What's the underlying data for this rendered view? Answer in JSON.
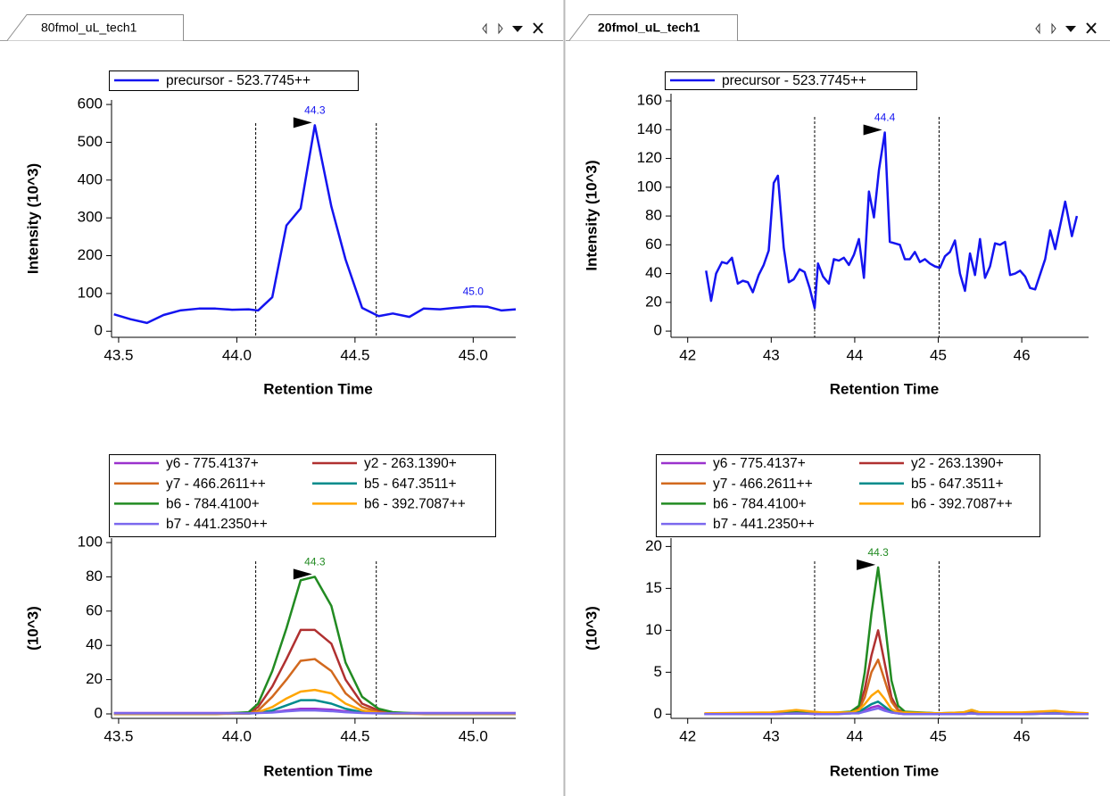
{
  "tabs": [
    "80fmol_uL_tech1",
    "20fmol_uL_tech1"
  ],
  "chart_data": [
    {
      "type": "line",
      "xlabel": "Retention Time",
      "ylabel": "Intensity (10^3)",
      "xlim": [
        43.47,
        45.18
      ],
      "ylim": [
        -16,
        612
      ],
      "xticks": [
        43.5,
        {
          "value": 44,
          "label": "44.0"
        },
        44.5,
        {
          "value": 45,
          "label": "45.0"
        }
      ],
      "yticks": [
        0,
        100,
        200,
        300,
        400,
        500,
        600
      ],
      "legend_columns": 1,
      "x": [
        43.48,
        43.55,
        43.62,
        43.69,
        43.76,
        43.84,
        43.91,
        43.98,
        44.05,
        44.09,
        44.15,
        44.21,
        44.27,
        44.33,
        44.4,
        44.46,
        44.53,
        44.6,
        44.66,
        44.73,
        44.79,
        44.86,
        44.92,
        45.0,
        45.06,
        45.12,
        45.18
      ],
      "series": [
        {
          "name": "precursor - 523.7745++",
          "color": "#1414f0",
          "values": [
            45,
            32,
            22,
            43,
            55,
            60,
            60,
            57,
            58,
            55,
            90,
            280,
            325,
            545,
            330,
            190,
            62,
            40,
            47,
            38,
            60,
            58,
            62,
            66,
            65,
            55,
            58
          ]
        }
      ],
      "boundaries": [
        44.08,
        44.59
      ],
      "peaks": [
        {
          "x": 44.33,
          "y": 545,
          "label": "44.3",
          "color": "#1414f0"
        },
        {
          "x": 45.0,
          "y": 66,
          "label": "45.0",
          "color": "#1414f0"
        }
      ]
    },
    {
      "type": "line",
      "xlabel": "Retention Time",
      "ylabel": "Intensity (10^3)",
      "xlim": [
        41.8,
        46.8
      ],
      "ylim": [
        -4.3,
        165
      ],
      "xticks": [
        42,
        43,
        44,
        45,
        46
      ],
      "yticks": [
        0,
        20,
        40,
        60,
        80,
        100,
        120,
        140,
        160
      ],
      "legend_columns": 1,
      "x": [
        42.22,
        42.28,
        42.34,
        42.41,
        42.47,
        42.53,
        42.6,
        42.66,
        42.72,
        42.78,
        42.85,
        42.91,
        42.97,
        43.03,
        43.08,
        43.15,
        43.21,
        43.27,
        43.34,
        43.4,
        43.46,
        43.52,
        43.56,
        43.62,
        43.69,
        43.75,
        43.81,
        43.87,
        43.93,
        43.99,
        44.05,
        44.11,
        44.17,
        44.23,
        44.29,
        44.36,
        44.42,
        44.48,
        44.54,
        44.6,
        44.66,
        44.72,
        44.78,
        44.84,
        44.9,
        44.96,
        45.02,
        45.08,
        45.14,
        45.2,
        45.26,
        45.32,
        45.38,
        45.44,
        45.5,
        45.56,
        45.62,
        45.68,
        45.74,
        45.8,
        45.86,
        45.92,
        45.98,
        46.04,
        46.1,
        46.16,
        46.28,
        46.34,
        46.4,
        46.52,
        46.6,
        46.66
      ],
      "series": [
        {
          "name": "precursor - 523.7745++",
          "color": "#1414f0",
          "values": [
            42,
            21,
            40,
            48,
            47,
            51,
            33,
            35,
            34,
            27,
            39,
            46,
            56,
            103,
            108,
            58,
            34,
            36,
            43,
            41,
            30,
            16,
            47,
            38,
            33,
            50,
            49,
            51,
            46,
            53,
            64,
            37,
            97,
            79,
            112,
            138,
            62,
            61,
            60,
            50,
            50,
            55,
            48,
            50,
            47,
            45,
            44,
            52,
            55,
            63,
            40,
            28,
            54,
            39,
            64,
            37,
            45,
            61,
            60,
            62,
            39,
            40,
            42,
            38,
            30,
            29,
            50,
            70,
            57,
            90,
            66,
            80
          ]
        }
      ],
      "boundaries": [
        43.52,
        45.01
      ],
      "peaks": [
        {
          "x": 44.36,
          "y": 138,
          "label": "44.4",
          "color": "#1414f0"
        }
      ]
    },
    {
      "type": "line",
      "xlabel": "Retention Time",
      "ylabel": "(10^3)",
      "xlim": [
        43.47,
        45.18
      ],
      "ylim": [
        -2.6,
        102.6
      ],
      "xticks": [
        43.5,
        {
          "value": 44,
          "label": "44.0"
        },
        44.5,
        {
          "value": 45,
          "label": "45.0"
        }
      ],
      "yticks": [
        0,
        20,
        40,
        60,
        80,
        100
      ],
      "legend_columns": 2,
      "x": [
        43.48,
        43.62,
        43.76,
        43.91,
        44.05,
        44.09,
        44.15,
        44.21,
        44.27,
        44.33,
        44.4,
        44.46,
        44.53,
        44.6,
        44.66,
        44.8,
        45.0,
        45.18
      ],
      "series": [
        {
          "name": "y6 - 775.4137+",
          "color": "#9a32cd",
          "values": [
            0.5,
            0.5,
            0.5,
            0.5,
            0.5,
            0.7,
            1,
            2,
            3,
            3,
            2.5,
            1.5,
            0.8,
            0.5,
            0.5,
            0.5,
            0.5,
            0.5
          ]
        },
        {
          "name": "y2 - 263.1390+",
          "color": "#b03030",
          "values": [
            0,
            0,
            0,
            0,
            0.5,
            4,
            16,
            32,
            49,
            49,
            41,
            20,
            6,
            2,
            0.5,
            0,
            0,
            0
          ]
        },
        {
          "name": "y7 - 466.2611++",
          "color": "#d2691e",
          "values": [
            0,
            0,
            0,
            0,
            0.3,
            2,
            10,
            20,
            31,
            32,
            25,
            12,
            4,
            1,
            0.3,
            0,
            0,
            0
          ]
        },
        {
          "name": "b5 - 647.3511+",
          "color": "#008b8b",
          "values": [
            0.2,
            0.2,
            0.2,
            0.2,
            0.2,
            0.6,
            2,
            5,
            8,
            8,
            6,
            3,
            1,
            0.3,
            0.2,
            0.2,
            0.2,
            0.2
          ]
        },
        {
          "name": "b6 - 784.4100+",
          "color": "#228b22",
          "values": [
            0,
            0,
            0,
            0,
            1,
            6,
            25,
            50,
            78,
            80,
            63,
            30,
            10,
            3,
            1,
            0,
            0,
            0
          ]
        },
        {
          "name": "b6 - 392.7087++",
          "color": "#ffa500",
          "values": [
            0,
            0,
            0,
            0,
            0.2,
            1,
            4,
            9,
            13,
            14,
            12,
            6,
            2,
            0.5,
            0.1,
            0,
            0,
            0
          ]
        },
        {
          "name": "b7 - 441.2350++",
          "color": "#7b68ee",
          "values": [
            0.3,
            0.3,
            0.3,
            0.3,
            0.3,
            0.5,
            0.8,
            1.5,
            2,
            2,
            1.6,
            1,
            0.5,
            0.3,
            0.3,
            0.3,
            0.3,
            0.3
          ]
        }
      ],
      "boundaries": [
        44.08,
        44.59
      ],
      "peaks": [
        {
          "x": 44.33,
          "y": 80,
          "label": "44.3",
          "color": "#228b22"
        }
      ]
    },
    {
      "type": "line",
      "xlabel": "Retention Time",
      "ylabel": "(10^3)",
      "xlim": [
        41.8,
        46.8
      ],
      "ylim": [
        -0.5,
        21
      ],
      "xticks": [
        42,
        43,
        44,
        45,
        46
      ],
      "yticks": [
        0,
        5,
        10,
        15,
        20
      ],
      "legend_columns": 2,
      "x": [
        42.2,
        43.0,
        43.3,
        43.6,
        43.8,
        43.95,
        44.05,
        44.12,
        44.2,
        44.28,
        44.36,
        44.44,
        44.52,
        44.6,
        45.0,
        45.3,
        45.4,
        45.5,
        46.0,
        46.4,
        46.6,
        46.8
      ],
      "series": [
        {
          "name": "y6 - 775.4137+",
          "color": "#9a32cd",
          "values": [
            0,
            0,
            0.1,
            0,
            0.1,
            0.1,
            0.2,
            0.4,
            0.8,
            1,
            0.6,
            0.2,
            0.1,
            0,
            0,
            0,
            0.1,
            0,
            0,
            0.1,
            0,
            0
          ]
        },
        {
          "name": "y2 - 263.1390+",
          "color": "#b03030",
          "values": [
            0,
            0.1,
            0.1,
            0.1,
            0.1,
            0.2,
            0.7,
            3,
            7,
            10,
            6,
            2,
            0.5,
            0.2,
            0.1,
            0.1,
            0.3,
            0.1,
            0.1,
            0.2,
            0.1,
            0
          ]
        },
        {
          "name": "y7 - 466.2611++",
          "color": "#d2691e",
          "values": [
            0,
            0.1,
            0.3,
            0.1,
            0.1,
            0.2,
            0.5,
            2,
            5,
            6.5,
            4,
            1.5,
            0.4,
            0.2,
            0.1,
            0.1,
            0.4,
            0.1,
            0.1,
            0.3,
            0.1,
            0
          ]
        },
        {
          "name": "b5 - 647.3511+",
          "color": "#008b8b",
          "values": [
            0,
            0.1,
            0.1,
            0.1,
            0.1,
            0.1,
            0.3,
            0.7,
            1.2,
            1.5,
            0.9,
            0.3,
            0.1,
            0.1,
            0,
            0.1,
            0.1,
            0,
            0,
            0.1,
            0,
            0
          ]
        },
        {
          "name": "b6 - 784.4100+",
          "color": "#228b22",
          "values": [
            0,
            0.1,
            0.2,
            0.1,
            0.2,
            0.3,
            1,
            5,
            12,
            17.5,
            11,
            4,
            1,
            0.3,
            0.1,
            0.2,
            0.5,
            0.2,
            0.1,
            0.3,
            0.2,
            0
          ]
        },
        {
          "name": "b6 - 392.7087++",
          "color": "#ffa500",
          "values": [
            0.1,
            0.2,
            0.5,
            0.2,
            0.2,
            0.2,
            0.5,
            1.2,
            2.2,
            2.8,
            1.8,
            0.6,
            0.2,
            0.2,
            0.1,
            0.2,
            0.5,
            0.2,
            0.2,
            0.4,
            0.2,
            0.1
          ]
        },
        {
          "name": "b7 - 441.2350++",
          "color": "#7b68ee",
          "values": [
            0,
            0,
            0.1,
            0,
            0,
            0.1,
            0.1,
            0.3,
            0.5,
            0.7,
            0.4,
            0.2,
            0.1,
            0,
            0,
            0,
            0.1,
            0,
            0,
            0.1,
            0,
            0
          ]
        }
      ],
      "boundaries": [
        43.52,
        45.01
      ],
      "peaks": [
        {
          "x": 44.28,
          "y": 17.5,
          "label": "44.3",
          "color": "#228b22"
        }
      ]
    }
  ]
}
